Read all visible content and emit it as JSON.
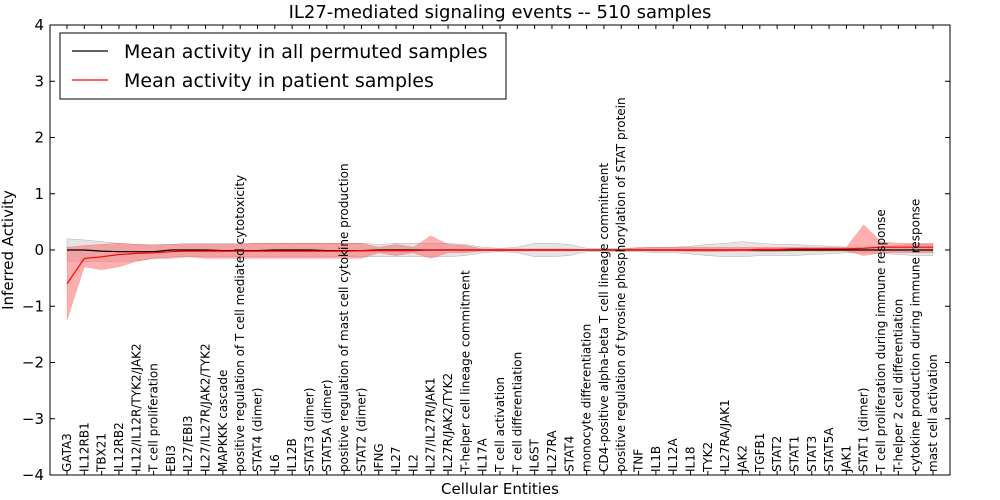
{
  "chart_data": {
    "type": "line",
    "title": "IL27-mediated signaling events -- 510 samples",
    "xlabel": "Cellular Entities",
    "ylabel": "Inferred Activity",
    "ylim": [
      -4,
      4
    ],
    "yticks": [
      -4,
      -3,
      -2,
      -1,
      0,
      1,
      2,
      3,
      4
    ],
    "ytick_labels": [
      "−4",
      "−3",
      "−2",
      "−1",
      "0",
      "1",
      "2",
      "3",
      "4"
    ],
    "legend_position": "top-left",
    "categories": [
      "GATA3",
      "IL12RB1",
      "TBX21",
      "IL12RB2",
      "IL12/IL12R/TYK2/JAK2",
      "T cell proliferation",
      "EBI3",
      "IL27/EBI3",
      "IL27/IL27R/JAK2/TYK2",
      "MAPKKK cascade",
      "positive regulation of T cell mediated cytotoxicity",
      "STAT4 (dimer)",
      "IL6",
      "IL12B",
      "STAT3 (dimer)",
      "STAT5A (dimer)",
      "positive regulation of mast cell cytokine production",
      "STAT2 (dimer)",
      "IFNG",
      "IL27",
      "IL2",
      "IL27/IL27R/JAK1",
      "IL27R/JAK2/TYK2",
      "T-helper cell lineage commitment",
      "IL17A",
      "T cell activation",
      "T cell differentiation",
      "IL6ST",
      "IL27RA",
      "STAT4",
      "monocyte differentiation",
      "CD4-positive alpha-beta T cell lineage commitment",
      "positive regulation of tyrosine phosphorylation of STAT protein",
      "TNF",
      "IL1B",
      "IL12A",
      "IL18",
      "TYK2",
      "IL27RA/JAK1",
      "JAK2",
      "TGFB1",
      "STAT2",
      "STAT1",
      "STAT3",
      "STAT5A",
      "JAK1",
      "STAT1 (dimer)",
      "T cell proliferation during immune response",
      "T-helper 2 cell differentiation",
      "cytokine production during immune response",
      "mast cell activation"
    ],
    "series": [
      {
        "name": "Mean activity in all permuted samples",
        "color": "#000000",
        "values": [
          0.0,
          0.0,
          -0.02,
          -0.03,
          -0.03,
          -0.03,
          0.0,
          0.0,
          0.0,
          -0.01,
          -0.01,
          -0.01,
          0.0,
          0.0,
          0.0,
          -0.01,
          -0.01,
          -0.01,
          0.0,
          0.0,
          0.0,
          0.0,
          0.0,
          0.0,
          0.0,
          0.0,
          0.0,
          0.0,
          0.0,
          0.0,
          0.0,
          0.0,
          0.0,
          0.0,
          0.0,
          0.0,
          0.0,
          0.0,
          0.0,
          0.0,
          0.0,
          0.0,
          0.0,
          0.0,
          0.0,
          0.0,
          0.0,
          0.0,
          0.0,
          0.0,
          0.0
        ],
        "lower": [
          -0.2,
          -0.2,
          -0.2,
          -0.2,
          -0.2,
          -0.15,
          -0.12,
          -0.12,
          -0.12,
          -0.12,
          -0.12,
          -0.12,
          -0.12,
          -0.12,
          -0.12,
          -0.12,
          -0.12,
          -0.12,
          -0.12,
          -0.12,
          -0.12,
          -0.12,
          -0.12,
          -0.1,
          -0.05,
          -0.03,
          -0.05,
          -0.12,
          -0.12,
          -0.1,
          -0.03,
          -0.03,
          -0.03,
          -0.03,
          -0.05,
          -0.05,
          -0.07,
          -0.1,
          -0.12,
          -0.12,
          -0.1,
          -0.1,
          -0.1,
          -0.08,
          -0.07,
          -0.05,
          -0.05,
          -0.06,
          -0.08,
          -0.1,
          -0.1
        ],
        "upper": [
          0.2,
          0.18,
          0.15,
          0.12,
          0.1,
          0.1,
          0.1,
          0.12,
          0.12,
          0.12,
          0.12,
          0.12,
          0.12,
          0.12,
          0.12,
          0.12,
          0.12,
          0.12,
          0.1,
          0.12,
          0.12,
          0.12,
          0.12,
          0.1,
          0.05,
          0.03,
          0.05,
          0.12,
          0.12,
          0.1,
          0.03,
          0.03,
          0.03,
          0.03,
          0.05,
          0.05,
          0.07,
          0.1,
          0.12,
          0.15,
          0.12,
          0.1,
          0.1,
          0.08,
          0.07,
          0.05,
          0.05,
          0.06,
          0.08,
          0.1,
          0.1
        ]
      },
      {
        "name": "Mean activity in patient samples",
        "color": "#ff0000",
        "values": [
          -0.6,
          -0.15,
          -0.12,
          -0.08,
          -0.06,
          -0.05,
          -0.03,
          -0.02,
          -0.02,
          -0.02,
          -0.02,
          -0.02,
          -0.02,
          -0.02,
          -0.02,
          -0.02,
          -0.02,
          -0.01,
          -0.01,
          -0.01,
          -0.01,
          0.0,
          0.0,
          0.0,
          0.0,
          0.0,
          0.0,
          0.0,
          0.0,
          0.0,
          0.0,
          0.0,
          0.0,
          0.0,
          0.0,
          0.0,
          0.0,
          0.0,
          0.0,
          0.0,
          0.01,
          0.01,
          0.02,
          0.02,
          0.02,
          0.02,
          0.03,
          0.05,
          0.05,
          0.05,
          0.05
        ],
        "lower": [
          -1.25,
          -0.3,
          -0.35,
          -0.3,
          -0.2,
          -0.15,
          -0.15,
          -0.12,
          -0.15,
          -0.15,
          -0.15,
          -0.15,
          -0.15,
          -0.15,
          -0.15,
          -0.15,
          -0.15,
          -0.15,
          -0.05,
          -0.1,
          -0.05,
          -0.15,
          -0.05,
          -0.05,
          -0.02,
          -0.02,
          -0.02,
          -0.02,
          -0.02,
          -0.02,
          -0.01,
          -0.01,
          -0.01,
          -0.01,
          -0.02,
          -0.02,
          -0.03,
          -0.03,
          -0.03,
          -0.02,
          -0.03,
          -0.03,
          -0.02,
          -0.02,
          -0.02,
          -0.02,
          -0.1,
          -0.05,
          -0.05,
          -0.05,
          -0.05
        ],
        "upper": [
          0.05,
          0.08,
          0.1,
          0.12,
          0.1,
          0.08,
          0.1,
          0.1,
          0.1,
          0.1,
          0.1,
          0.12,
          0.12,
          0.12,
          0.12,
          0.12,
          0.12,
          0.12,
          0.05,
          0.1,
          0.05,
          0.25,
          0.1,
          0.08,
          0.02,
          0.02,
          0.02,
          0.02,
          0.02,
          0.02,
          0.01,
          0.01,
          0.01,
          0.05,
          0.05,
          0.05,
          0.05,
          0.05,
          0.05,
          0.05,
          0.05,
          0.05,
          0.05,
          0.05,
          0.05,
          0.05,
          0.45,
          0.15,
          0.12,
          0.12,
          0.12
        ]
      }
    ]
  }
}
